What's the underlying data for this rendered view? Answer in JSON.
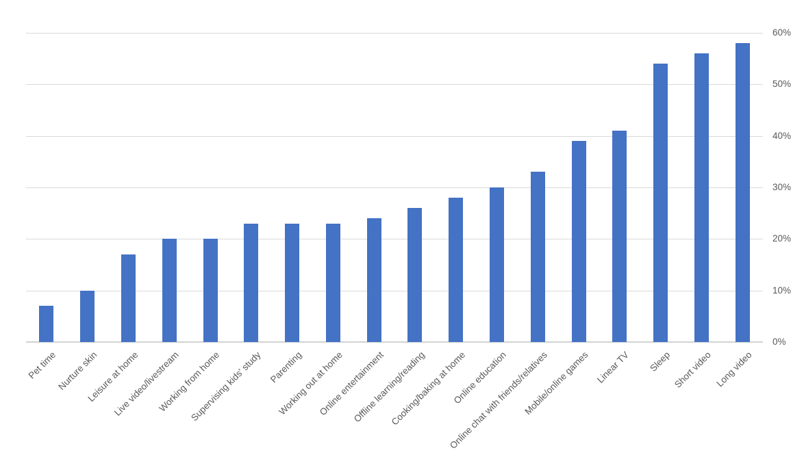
{
  "chart_data": {
    "type": "bar",
    "title": "",
    "categories": [
      "Pet time",
      "Nurture skin",
      "Leisure at home",
      "Live video/livestream",
      "Working from home",
      "Supervising kids' study",
      "Parenting",
      "Working out at home",
      "Online entertainment",
      "Offline learning/reading",
      "Cooking/baking at home",
      "Online education",
      "Online chat with friends/relatives",
      "Mobile/online games",
      "Linear TV",
      "Sleep",
      "Short video",
      "Long video"
    ],
    "values": [
      7,
      10,
      17,
      20,
      20,
      23,
      23,
      23,
      24,
      26,
      28,
      30,
      33,
      39,
      41,
      54,
      56,
      58
    ],
    "unit": "%",
    "xlabel": "",
    "ylabel": "",
    "ylim": [
      0,
      60
    ],
    "yticks": [
      0,
      10,
      20,
      30,
      40,
      50,
      60
    ],
    "ytick_labels": [
      "0%",
      "10%",
      "20%",
      "30%",
      "40%",
      "50%",
      "60%"
    ],
    "y_axis_side": "right",
    "x_label_rotation_deg": -45,
    "grid": true,
    "legend": "none",
    "colors": {
      "bar": "#4472C4",
      "gridline": "#D9D9D9",
      "axis_line": "#D2D2D2",
      "tick_label": "#595959",
      "background": "#FFFFFF"
    }
  }
}
